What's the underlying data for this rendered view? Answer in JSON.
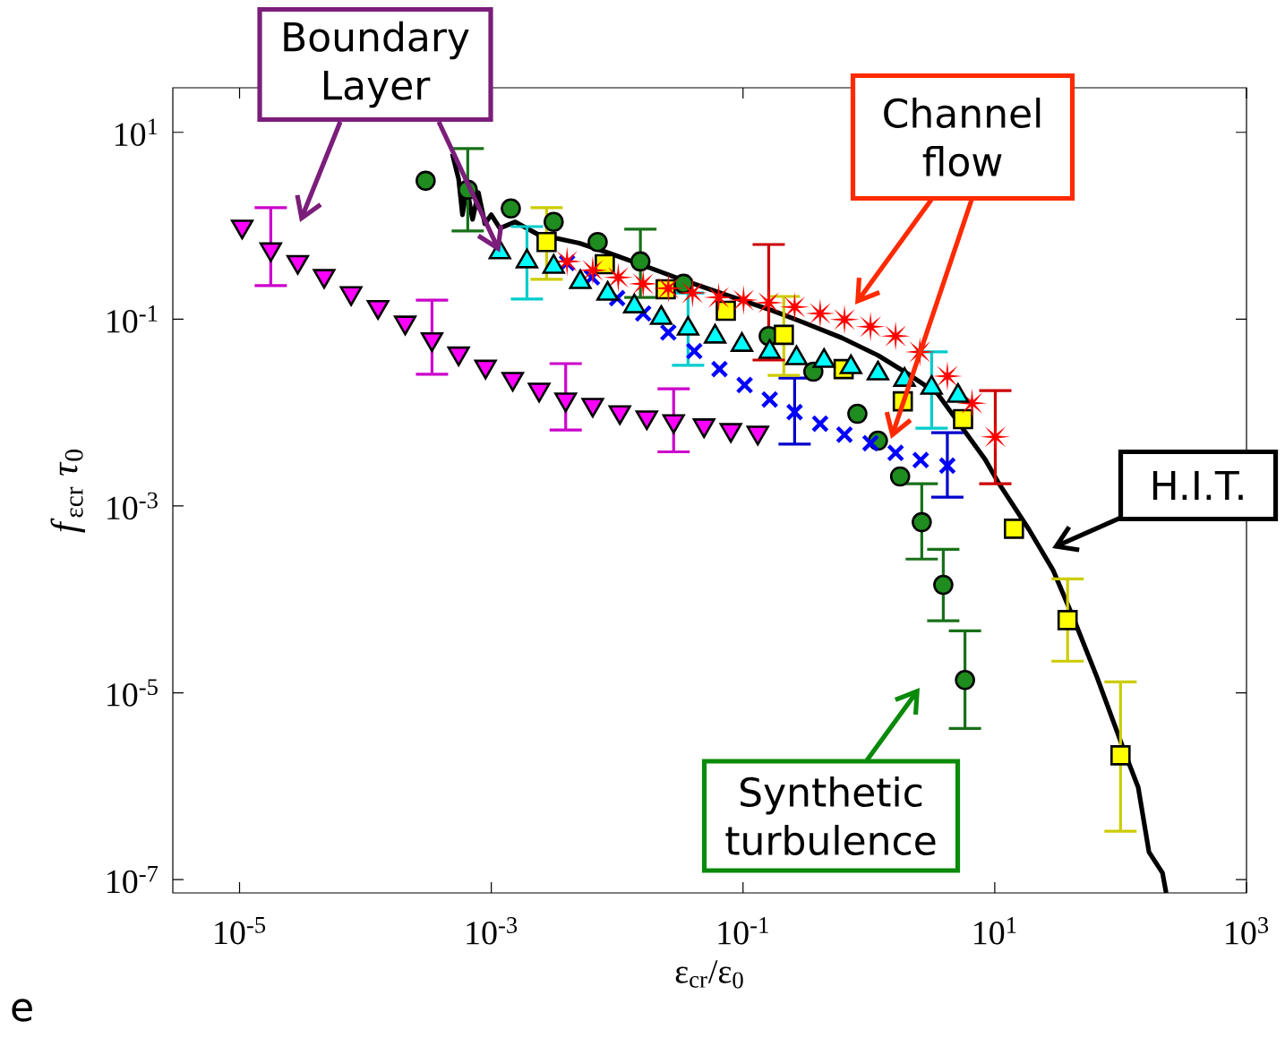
{
  "chart_data": {
    "type": "scatter",
    "log": "xy",
    "xlabel": "ε$_{cr}$/ε$_{0}$",
    "ylabel": "*f*$_{εcr}$ *τ*$_{0}$",
    "xlim": [
      2.95e-06,
      1000
    ],
    "ylim": [
      7.2e-08,
      30
    ],
    "xticks": [
      {
        "value": 1e-05,
        "label": "10$^{-5}$"
      },
      {
        "value": 0.001,
        "label": "10$^{-3}$"
      },
      {
        "value": 0.1,
        "label": "10$^{-1}$"
      },
      {
        "value": 10,
        "label": "10$^{1}$"
      },
      {
        "value": 1000,
        "label": "10$^{3}$"
      }
    ],
    "yticks": [
      {
        "value": 1e-07,
        "label": "10$^{-7}$"
      },
      {
        "value": 1e-05,
        "label": "10$^{-5}$"
      },
      {
        "value": 0.001,
        "label": "10$^{-3}$"
      },
      {
        "value": 0.1,
        "label": "10$^{-1}$"
      },
      {
        "value": 10,
        "label": "10$^{1}$"
      }
    ],
    "annotations": [
      {
        "text": "Boundary Layer",
        "x": 0.00117,
        "y": 0.52
      },
      "Channel flow",
      "H.I.T.",
      "Synthetic turbulence",
      "e"
    ],
    "series": [
      {
        "type": "line",
        "color": "#000000",
        "x": [
          0.00049,
          0.00055,
          0.00059,
          0.00064,
          0.00071,
          0.00079,
          0.00089,
          0.001,
          0.00117,
          0.00155,
          0.00234,
          0.005,
          0.0086,
          0.0167,
          0.032,
          0.076,
          0.173,
          0.303,
          0.61,
          1.18,
          2.02,
          3.53,
          8.4,
          10.6,
          18.7,
          29.2,
          42.6,
          65,
          108,
          138,
          168,
          215,
          230
        ],
        "values": [
          5.9,
          3.17,
          1.31,
          2.54,
          1.17,
          2.27,
          1.05,
          1.31,
          0.94,
          1.1,
          0.81,
          0.65,
          0.51,
          0.37,
          0.267,
          0.179,
          0.123,
          0.092,
          0.063,
          0.041,
          0.0262,
          0.0158,
          0.00314,
          0.00181,
          0.00056,
          0.000203,
          6.1e-05,
          1.46e-05,
          2.29e-06,
          9.7e-07,
          1.97e-07,
          1.18e-07,
          7.2e-08
        ]
      },
      {
        "marker": "triangle-down",
        "color": "#ff00ff",
        "x": [
          1.05e-05,
          1.77e-05,
          2.9e-05,
          4.7e-05,
          7.7e-05,
          0.000126,
          0.000207,
          0.000338,
          0.00055,
          0.0009,
          0.00148,
          0.0024,
          0.0039,
          0.0064,
          0.0105,
          0.0172,
          0.0281,
          0.049,
          0.08,
          0.131
        ],
        "values": [
          0.98,
          0.56,
          0.41,
          0.29,
          0.19,
          0.135,
          0.092,
          0.061,
          0.043,
          0.031,
          0.023,
          0.0176,
          0.0138,
          0.0121,
          0.0101,
          0.0089,
          0.0081,
          0.0073,
          0.0065,
          0.0061
        ],
        "errors": [
          null,
          [
            0.229,
            1.56
          ],
          null,
          null,
          null,
          null,
          null,
          [
            0.0257,
            0.16
          ],
          null,
          null,
          null,
          null,
          [
            0.0065,
            0.0334
          ],
          null,
          null,
          null,
          [
            0.0038,
            0.018
          ],
          null,
          null,
          null
        ]
      },
      {
        "marker": "cross",
        "color": "#0000ff",
        "x": [
          0.004,
          0.0063,
          0.01,
          0.0161,
          0.0255,
          0.041,
          0.065,
          0.103,
          0.163,
          0.257,
          0.41,
          0.64,
          1.03,
          1.63,
          2.58,
          4.2
        ],
        "values": [
          0.4,
          0.28,
          0.168,
          0.115,
          0.072,
          0.0455,
          0.0292,
          0.0197,
          0.0138,
          0.0101,
          0.0076,
          0.0058,
          0.0047,
          0.0037,
          0.0031,
          0.0027
        ],
        "errors": [
          null,
          null,
          null,
          null,
          null,
          null,
          null,
          null,
          null,
          [
            0.0046,
            0.0234
          ],
          null,
          null,
          null,
          null,
          null,
          [
            0.00124,
            0.0061
          ]
        ]
      },
      {
        "marker": "star",
        "color": "#ff0000",
        "x": [
          0.004,
          0.0064,
          0.0102,
          0.0161,
          0.0255,
          0.0397,
          0.064,
          0.101,
          0.16,
          0.257,
          0.41,
          0.64,
          1.03,
          1.63,
          2.54,
          4.2,
          6.6,
          10.1
        ],
        "values": [
          0.415,
          0.333,
          0.28,
          0.239,
          0.214,
          0.191,
          0.171,
          0.16,
          0.15,
          0.135,
          0.115,
          0.099,
          0.083,
          0.066,
          0.0446,
          0.0245,
          0.0126,
          0.0055
        ],
        "errors": [
          null,
          null,
          null,
          null,
          null,
          null,
          null,
          null,
          [
            0.0365,
            0.63
          ],
          null,
          null,
          null,
          null,
          null,
          null,
          null,
          null,
          [
            0.00173,
            0.0172
          ]
        ]
      },
      {
        "marker": "circle",
        "color": "#1e8c1e",
        "x": [
          0.000301,
          0.00065,
          0.00143,
          0.00313,
          0.007,
          0.0153,
          0.0337,
          0.16,
          0.362,
          0.81,
          1.18,
          1.77,
          2.63,
          3.9,
          5.8
        ],
        "values": [
          3.03,
          2.43,
          1.53,
          1.1,
          0.67,
          0.415,
          0.239,
          0.066,
          0.0274,
          0.0097,
          0.005,
          0.00207,
          0.00067,
          0.000143,
          1.37e-05
        ],
        "errors": [
          null,
          [
            0.88,
            6.7
          ],
          null,
          null,
          null,
          [
            0.171,
            0.92
          ],
          null,
          null,
          null,
          null,
          null,
          null,
          [
            0.00027,
            0.00173
          ],
          [
            5.9e-05,
            0.000344
          ],
          [
            4.15e-06,
            4.6e-05
          ]
        ]
      },
      {
        "marker": "square",
        "color": "#ffff00",
        "x": [
          0.00275,
          0.00798,
          0.0243,
          0.073,
          0.211,
          0.63,
          1.86,
          5.6,
          14.2,
          37.9,
          99.8
        ],
        "values": [
          0.67,
          0.388,
          0.209,
          0.123,
          0.068,
          0.0292,
          0.0132,
          0.0085,
          0.00057,
          6e-05,
          2.14e-06
        ],
        "errors": [
          [
            0.267,
            1.56
          ],
          null,
          null,
          null,
          [
            0.025,
            0.175
          ],
          null,
          null,
          null,
          null,
          [
            2.18e-05,
            0.000166
          ],
          [
            3.3e-07,
            1.31e-05
          ]
        ]
      },
      {
        "marker": "triangle",
        "color": "#00ffff",
        "x": [
          0.00117,
          0.00192,
          0.00313,
          0.0051,
          0.0084,
          0.0137,
          0.0224,
          0.0366,
          0.06,
          0.098,
          0.163,
          0.266,
          0.44,
          0.72,
          1.18,
          1.92,
          3.15,
          5.1
        ],
        "values": [
          0.52,
          0.415,
          0.363,
          0.249,
          0.187,
          0.137,
          0.103,
          0.079,
          0.065,
          0.053,
          0.0446,
          0.0382,
          0.0357,
          0.0306,
          0.0262,
          0.0224,
          0.0184,
          0.0151
        ],
        "errors": [
          null,
          [
            0.164,
            0.98
          ],
          null,
          null,
          null,
          null,
          null,
          [
            0.032,
            0.191
          ],
          null,
          null,
          null,
          null,
          null,
          null,
          null,
          null,
          [
            0.0068,
            0.0446
          ],
          null
        ]
      }
    ]
  }
}
